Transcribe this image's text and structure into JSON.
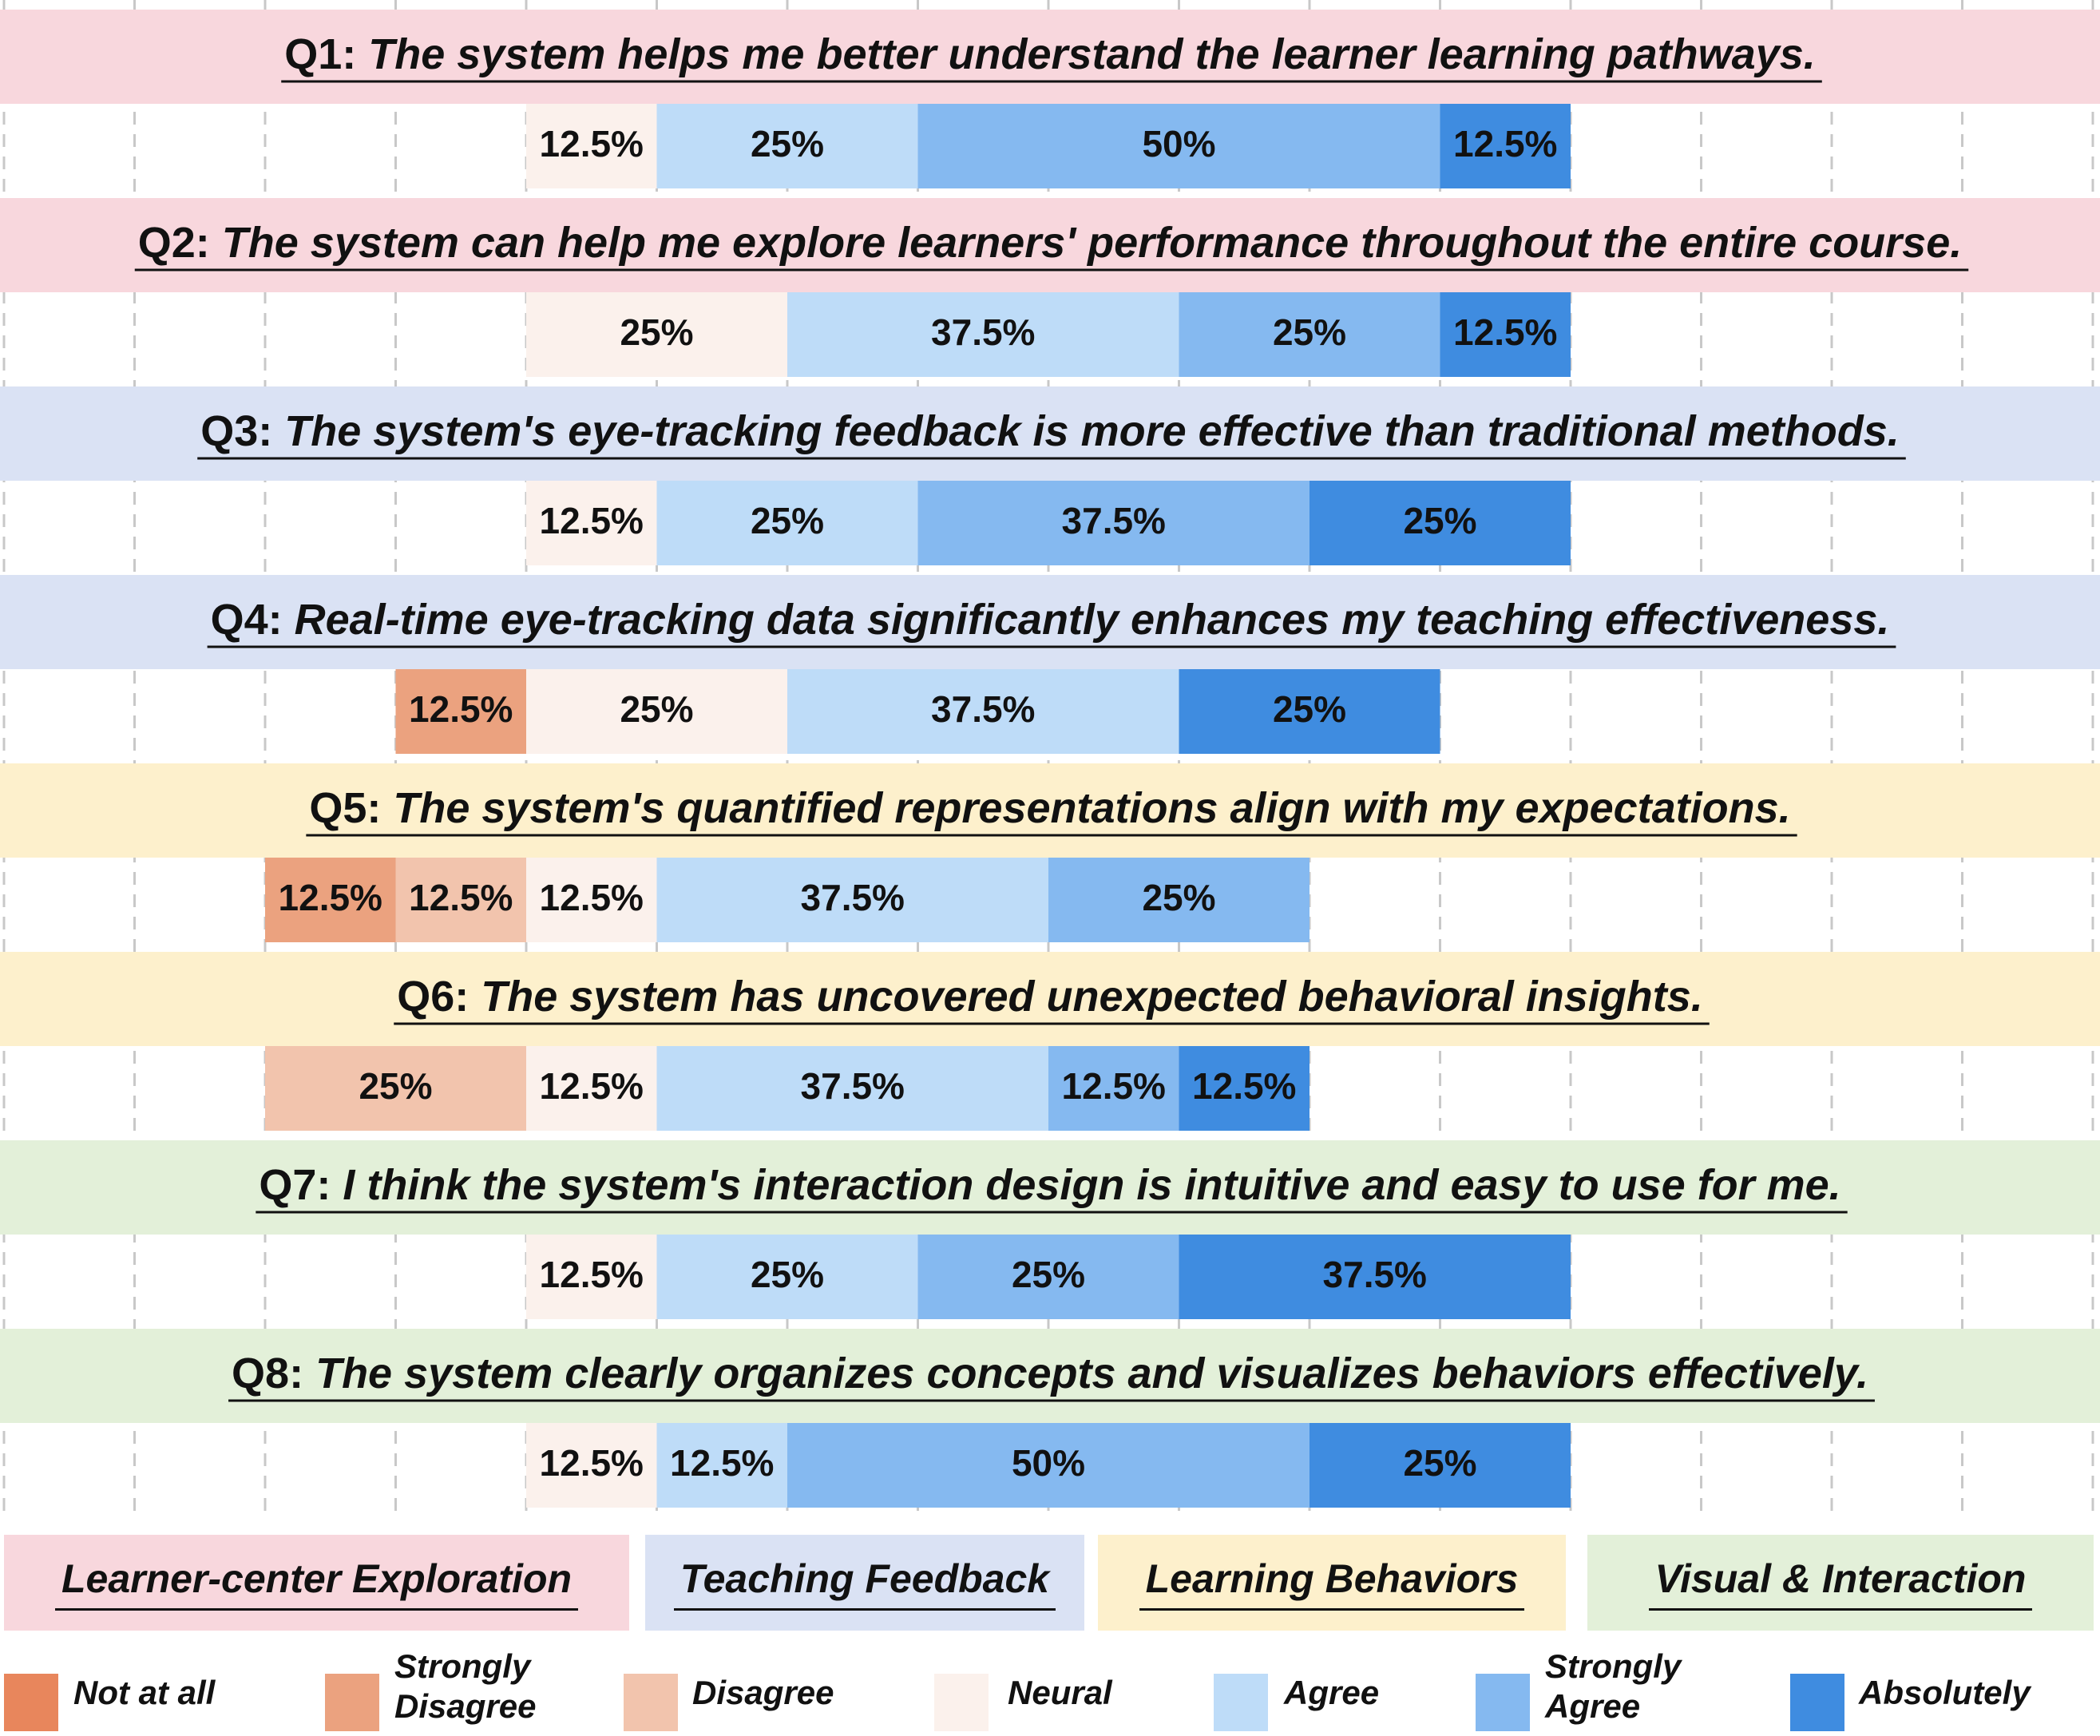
{
  "chart_data": {
    "type": "bar",
    "stacked": true,
    "orientation": "horizontal",
    "grid": true,
    "levels": [
      "Not at all",
      "Strongly Disagree",
      "Disagree",
      "Neural",
      "Agree",
      "Strongly Agree",
      "Absolutely"
    ],
    "level_colors": [
      "#e8865c",
      "#eba27f",
      "#f2c4ad",
      "#fbf1ec",
      "#bedcf8",
      "#85b9f0",
      "#3f8ce0"
    ],
    "questions": [
      {
        "id": "Q1",
        "prefix": "Q1: ",
        "text": "The system helps me better understand the learner learning pathways.",
        "category": 0,
        "values": [
          0,
          0,
          0,
          12.5,
          25,
          50,
          12.5
        ],
        "labels": [
          "",
          "",
          "",
          "12.5%",
          "25%",
          "50%",
          "12.5%"
        ]
      },
      {
        "id": "Q2",
        "prefix": "Q2: ",
        "text": "The system can help me explore learners' performance throughout the entire course.",
        "category": 0,
        "values": [
          0,
          0,
          0,
          25,
          37.5,
          25,
          12.5
        ],
        "labels": [
          "",
          "",
          "",
          "25%",
          "37.5%",
          "25%",
          "12.5%"
        ]
      },
      {
        "id": "Q3",
        "prefix": "Q3: ",
        "text": "The system's eye-tracking feedback is more effective than traditional methods.",
        "category": 1,
        "values": [
          0,
          0,
          0,
          12.5,
          25,
          37.5,
          25
        ],
        "labels": [
          "",
          "",
          "",
          "12.5%",
          "25%",
          "37.5%",
          "25%"
        ]
      },
      {
        "id": "Q4",
        "prefix": "Q4: ",
        "text": "Real-time eye-tracking data significantly enhances my teaching effectiveness.",
        "category": 1,
        "values": [
          0,
          12.5,
          0,
          25,
          37.5,
          0,
          25
        ],
        "labels": [
          "",
          "12.5%",
          "",
          "25%",
          "37.5%",
          "",
          "25%"
        ]
      },
      {
        "id": "Q5",
        "prefix": "Q5: ",
        "text": "The system's quantified representations align with my expectations.",
        "category": 2,
        "values": [
          0,
          12.5,
          12.5,
          12.5,
          37.5,
          25,
          0
        ],
        "labels": [
          "",
          "12.5%",
          "12.5%",
          "12.5%",
          "37.5%",
          "25%",
          ""
        ]
      },
      {
        "id": "Q6",
        "prefix": "Q6: ",
        "text": "The system has uncovered unexpected behavioral insights.",
        "category": 2,
        "values": [
          0,
          0,
          25,
          12.5,
          37.5,
          12.5,
          12.5
        ],
        "labels": [
          "",
          "",
          "25%",
          "12.5%",
          "37.5%",
          "12.5%",
          "12.5%"
        ]
      },
      {
        "id": "Q7",
        "prefix": "Q7: ",
        "text": "I think the system's interaction design is intuitive and easy to use for me.",
        "category": 3,
        "values": [
          0,
          0,
          0,
          12.5,
          25,
          25,
          37.5
        ],
        "labels": [
          "",
          "",
          "",
          "12.5%",
          "25%",
          "25%",
          "37.5%"
        ]
      },
      {
        "id": "Q8",
        "prefix": "Q8: ",
        "text": "The system clearly organizes concepts and visualizes behaviors effectively.",
        "category": 3,
        "values": [
          0,
          0,
          0,
          12.5,
          12.5,
          50,
          25
        ],
        "labels": [
          "",
          "",
          "",
          "12.5%",
          "12.5%",
          "50%",
          "25%"
        ]
      }
    ],
    "categories": [
      {
        "name": "Learner-center Exploration",
        "color": "#f8d7dd"
      },
      {
        "name": "Teaching Feedback",
        "color": "#dae2f4"
      },
      {
        "name": "Learning Behaviors",
        "color": "#fdf0cc"
      },
      {
        "name": "Visual & Interaction",
        "color": "#e3f0d9"
      }
    ]
  },
  "legend": {
    "items": [
      {
        "label_line1": "Not at all",
        "label_line2": ""
      },
      {
        "label_line1": "Strongly",
        "label_line2": "Disagree"
      },
      {
        "label_line1": "Disagree",
        "label_line2": ""
      },
      {
        "label_line1": "Neural",
        "label_line2": ""
      },
      {
        "label_line1": "Agree",
        "label_line2": ""
      },
      {
        "label_line1": "Strongly",
        "label_line2": "Agree"
      },
      {
        "label_line1": "Absolutely",
        "label_line2": ""
      }
    ]
  }
}
